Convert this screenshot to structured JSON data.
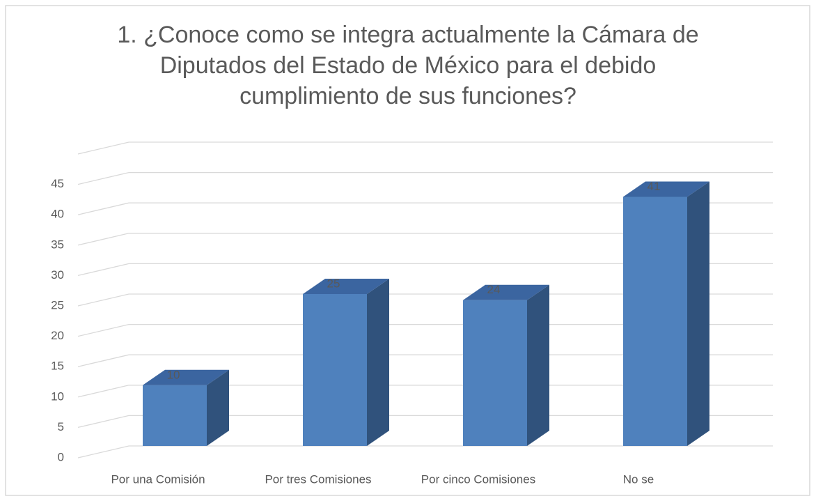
{
  "chart_data": {
    "type": "bar3d",
    "title": "1. ¿Conoce como se integra actualmente la Cámara de Diputados del Estado de México para el debido cumplimiento de sus funciones?",
    "categories": [
      "Por una Comisión",
      "Por tres Comisiones",
      "Por cinco Comisiones",
      "No se"
    ],
    "values": [
      10,
      25,
      24,
      41
    ],
    "color": "#4f81bd",
    "ylim": [
      0,
      50
    ],
    "yticks": [
      0,
      5,
      10,
      15,
      20,
      25,
      30,
      35,
      40,
      45
    ],
    "grid": true
  }
}
